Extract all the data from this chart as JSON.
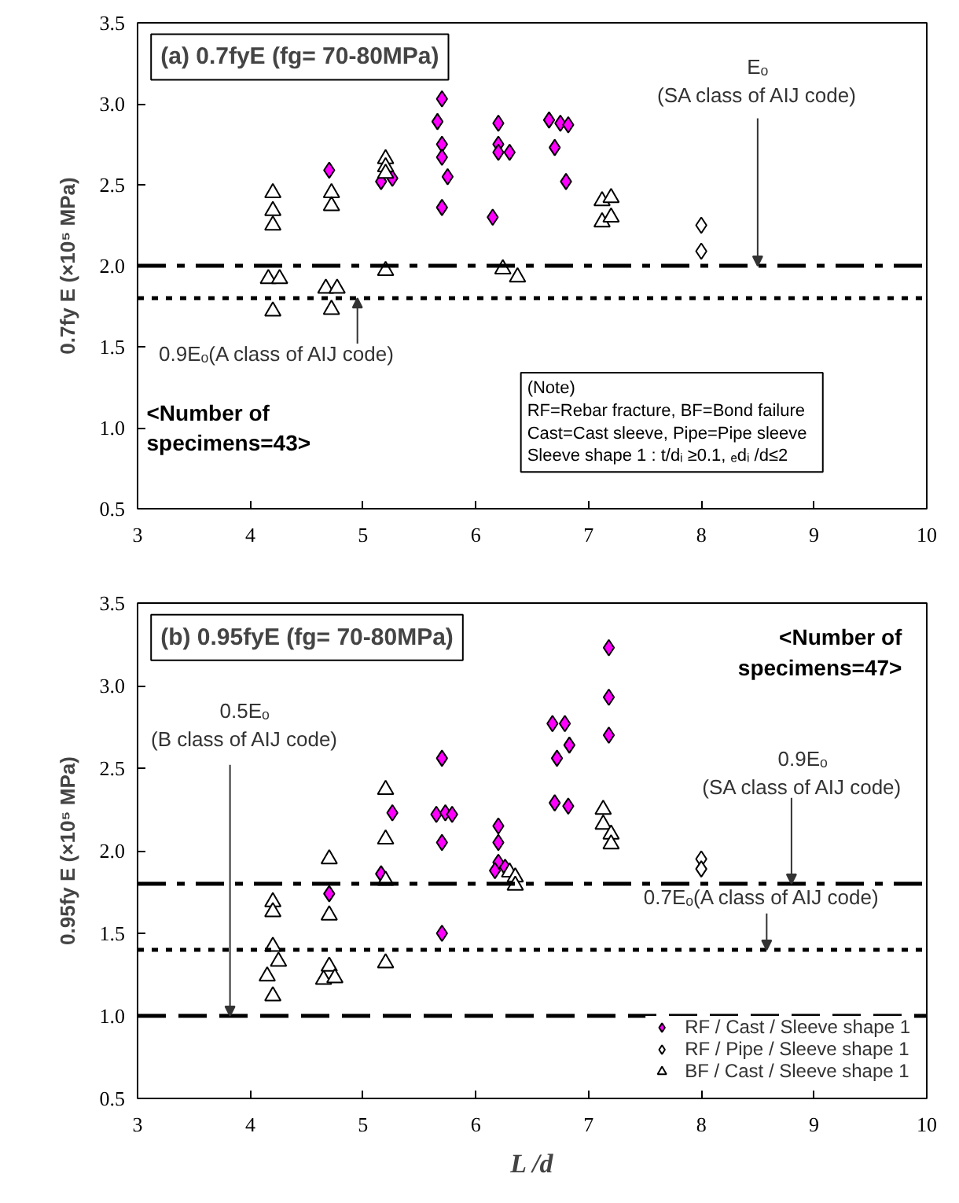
{
  "chart_data": [
    {
      "type": "scatter",
      "title": "(a) 0.7fyE (fg= 70-80MPa)",
      "ylabel": "0.7fy E (×10⁵ MPa)",
      "xlim": [
        3,
        10
      ],
      "xticks": [
        3,
        4,
        5,
        6,
        7,
        8,
        9,
        10
      ],
      "ylim": [
        0.5,
        3.5
      ],
      "yticks": [
        {
          "value": 0.5,
          "label": "0.5"
        },
        {
          "value": 1,
          "label": "1.0"
        },
        {
          "value": 1.5,
          "label": "1.5"
        },
        {
          "value": 2,
          "label": "2.0"
        },
        {
          "value": 2.5,
          "label": "2.5"
        },
        {
          "value": 3,
          "label": "3.0"
        },
        {
          "value": 3.5,
          "label": "3.5"
        }
      ],
      "grid": false,
      "legend": false,
      "series": [
        {
          "color": "#ff00ff",
          "marker": "diamond",
          "x": [
            4.7,
            5.16,
            5.26,
            5.7,
            5.66,
            5.7,
            5.7,
            5.75,
            5.7,
            6.2,
            6.2,
            6.2,
            6.3,
            6.15,
            6.65,
            6.75,
            6.82,
            6.7,
            6.8
          ],
          "values": [
            2.59,
            2.52,
            2.54,
            3.03,
            2.89,
            2.75,
            2.67,
            2.55,
            2.36,
            2.88,
            2.75,
            2.7,
            2.7,
            2.3,
            2.9,
            2.88,
            2.87,
            2.73,
            2.52
          ]
        },
        {
          "color": "#ffffff",
          "marker": "diamond",
          "x": [
            8,
            8
          ],
          "values": [
            2.25,
            2.09
          ]
        },
        {
          "color": "#ffffff",
          "marker": "triangle",
          "x": [
            4.2,
            4.2,
            4.2,
            4.16,
            4.26,
            4.2,
            4.72,
            4.72,
            4.67,
            4.77,
            4.72,
            5.2,
            5.2,
            5.2,
            5.2,
            6.24,
            6.37,
            7.12,
            7.2,
            7.12,
            7.2
          ],
          "values": [
            2.45,
            2.34,
            2.25,
            1.92,
            1.92,
            1.72,
            2.45,
            2.37,
            1.86,
            1.86,
            1.73,
            2.66,
            2.61,
            2.57,
            1.97,
            1.98,
            1.93,
            2.4,
            2.42,
            2.27,
            2.3
          ]
        }
      ],
      "ref_lines": [
        {
          "axis": "y",
          "value": 2.0,
          "color": "#000000",
          "line_style": "dashdot"
        },
        {
          "axis": "y",
          "value": 1.8,
          "color": "#000000",
          "line_style": "dotted"
        }
      ],
      "annotations": [
        {
          "text": "Eₒ\n(SA class of AIJ code)",
          "x": 8.5,
          "y": 2.0
        },
        {
          "text": "0.9Eₒ(A class of AIJ code)",
          "x": 4.95,
          "y": 1.8
        },
        "<Number of\nspecimens=43>",
        "(Note)\n  RF=Rebar fracture, BF=Bond failure\n  Cast=Cast sleeve, Pipe=Pipe sleeve\n  Sleeve shape 1 : t/dᵢ ≥0.1, ₑdᵢ /d≤2"
      ]
    },
    {
      "type": "scatter",
      "title": "(b) 0.95fyE (fg= 70-80MPa)",
      "ylabel": "0.95fy E (×10⁵ MPa)",
      "xlabel": "L /d",
      "xlim": [
        3,
        10
      ],
      "xticks": [
        3,
        4,
        5,
        6,
        7,
        8,
        9,
        10
      ],
      "ylim": [
        0.5,
        3.5
      ],
      "yticks": [
        {
          "value": 0.5,
          "label": "0.5"
        },
        {
          "value": 1,
          "label": "1.0"
        },
        {
          "value": 1.5,
          "label": "1.5"
        },
        {
          "value": 2,
          "label": "2.0"
        },
        {
          "value": 2.5,
          "label": "2.5"
        },
        {
          "value": 3,
          "label": "3.0"
        },
        {
          "value": 3.5,
          "label": "3.5"
        }
      ],
      "grid": false,
      "legend": "bottom right",
      "series": [
        {
          "name": "RF / Cast / Sleeve shape 1",
          "color": "#ff00ff",
          "marker": "diamond",
          "x": [
            4.7,
            5.26,
            5.16,
            5.7,
            5.65,
            5.73,
            5.79,
            5.7,
            5.7,
            6.2,
            6.2,
            6.2,
            6.17,
            6.26,
            6.68,
            6.79,
            6.83,
            6.72,
            6.7,
            6.82,
            7.18,
            7.18,
            7.18
          ],
          "values": [
            1.74,
            2.23,
            1.86,
            2.56,
            2.22,
            2.23,
            2.22,
            2.05,
            1.5,
            2.15,
            2.05,
            1.93,
            1.88,
            1.9,
            2.77,
            2.77,
            2.64,
            2.56,
            2.29,
            2.27,
            3.23,
            2.93,
            2.7
          ]
        },
        {
          "name": "RF / Pipe / Sleeve shape 1",
          "color": "#ffffff",
          "marker": "diamond",
          "x": [
            8,
            8
          ],
          "values": [
            1.95,
            1.89
          ]
        },
        {
          "name": "BF / Cast / Sleeve shape 1",
          "color": "#ffffff",
          "marker": "triangle",
          "x": [
            4.2,
            4.2,
            4.2,
            4.25,
            4.15,
            4.2,
            4.7,
            4.7,
            4.7,
            4.65,
            4.75,
            5.2,
            5.2,
            5.2,
            5.2,
            6.3,
            6.35,
            6.35,
            7.13,
            7.13,
            7.2,
            7.2
          ],
          "values": [
            1.69,
            1.63,
            1.42,
            1.33,
            1.24,
            1.12,
            1.95,
            1.61,
            1.3,
            1.22,
            1.23,
            2.37,
            2.07,
            1.82,
            1.32,
            1.87,
            1.84,
            1.79,
            2.25,
            2.16,
            2.1,
            2.04
          ]
        }
      ],
      "ref_lines": [
        {
          "axis": "y",
          "value": 1.8,
          "color": "#000000",
          "line_style": "dashdot"
        },
        {
          "axis": "y",
          "value": 1.4,
          "color": "#000000",
          "line_style": "dotted"
        },
        {
          "axis": "y",
          "value": 1.0,
          "color": "#000000",
          "line_style": "dashed"
        }
      ],
      "annotations": [
        "<Number of\nspecimens=47>",
        {
          "text": "0.5Eₒ\n(B class of AIJ code)",
          "x": 3.82,
          "y": 1.0
        },
        {
          "text": "0.9Eₒ\n(SA class of AIJ code)",
          "x": 8.8,
          "y": 1.8
        },
        {
          "text": "0.7Eₒ(A class of AIJ code)",
          "x": 8.58,
          "y": 1.4
        }
      ]
    }
  ]
}
